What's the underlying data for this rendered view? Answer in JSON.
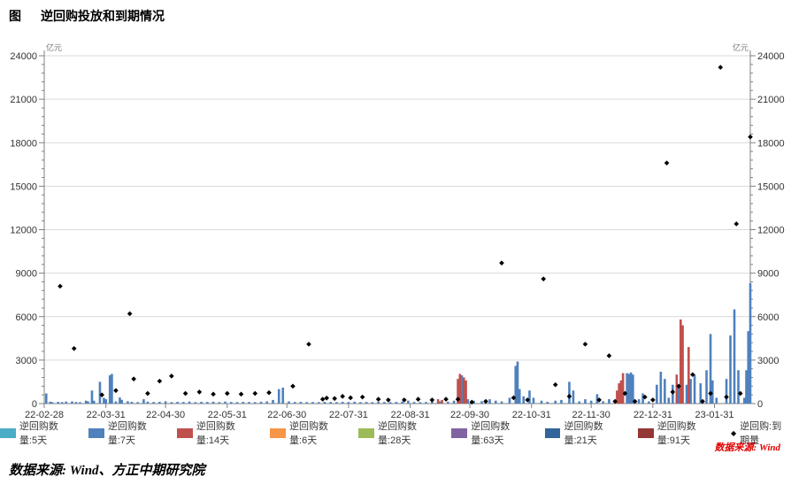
{
  "header": {
    "figure_label": "图",
    "title": "逆回购投放和到期情况"
  },
  "footer": {
    "source_main": "数据来源: Wind、方正中期研究院",
    "source_red": "数据来源: Wind"
  },
  "chart_data": {
    "type": "bar",
    "title": "逆回购投放和到期情况",
    "unit_label": "亿元",
    "grid": true,
    "legend_position": "bottom",
    "y_axis": {
      "min": 0,
      "max": 24000,
      "major_step": 3000,
      "minor_step": 600,
      "ticks": [
        0,
        3000,
        6000,
        9000,
        12000,
        15000,
        18000,
        21000,
        24000
      ]
    },
    "x_axis": {
      "total_days": 355,
      "ticks": [
        {
          "day": 0,
          "label": "22-02-28"
        },
        {
          "day": 31,
          "label": "22-03-31"
        },
        {
          "day": 61,
          "label": "22-04-30"
        },
        {
          "day": 92,
          "label": "22-05-31"
        },
        {
          "day": 122,
          "label": "22-06-30"
        },
        {
          "day": 153,
          "label": "22-07-31"
        },
        {
          "day": 184,
          "label": "22-08-31"
        },
        {
          "day": 214,
          "label": "22-09-30"
        },
        {
          "day": 245,
          "label": "22-10-31"
        },
        {
          "day": 275,
          "label": "22-11-30"
        },
        {
          "day": 306,
          "label": "22-12-31"
        },
        {
          "day": 337,
          "label": "23-01-31"
        }
      ]
    },
    "series": [
      {
        "name": "逆回购数量:5天",
        "color": "#4BACC6",
        "bars": []
      },
      {
        "name": "逆回购数量:7天",
        "color": "#4F81BD",
        "bars": [
          [
            1,
            700
          ],
          [
            3,
            130
          ],
          [
            4,
            100
          ],
          [
            7,
            120
          ],
          [
            9,
            100
          ],
          [
            11,
            140
          ],
          [
            14,
            150
          ],
          [
            16,
            110
          ],
          [
            18,
            100
          ],
          [
            21,
            200
          ],
          [
            22,
            150
          ],
          [
            24,
            900
          ],
          [
            25,
            200
          ],
          [
            28,
            1500
          ],
          [
            30,
            400
          ],
          [
            31,
            300
          ],
          [
            33,
            1950
          ],
          [
            34,
            2050
          ],
          [
            36,
            150
          ],
          [
            38,
            420
          ],
          [
            39,
            260
          ],
          [
            42,
            160
          ],
          [
            44,
            120
          ],
          [
            47,
            100
          ],
          [
            50,
            300
          ],
          [
            52,
            130
          ],
          [
            55,
            110
          ],
          [
            58,
            120
          ],
          [
            61,
            160
          ],
          [
            64,
            100
          ],
          [
            67,
            120
          ],
          [
            70,
            110
          ],
          [
            73,
            140
          ],
          [
            76,
            100
          ],
          [
            79,
            120
          ],
          [
            82,
            110
          ],
          [
            85,
            130
          ],
          [
            88,
            100
          ],
          [
            91,
            140
          ],
          [
            94,
            110
          ],
          [
            97,
            100
          ],
          [
            100,
            120
          ],
          [
            103,
            110
          ],
          [
            106,
            100
          ],
          [
            109,
            130
          ],
          [
            112,
            150
          ],
          [
            115,
            250
          ],
          [
            118,
            1000
          ],
          [
            120,
            1100
          ],
          [
            123,
            150
          ],
          [
            126,
            110
          ],
          [
            129,
            120
          ],
          [
            132,
            100
          ],
          [
            135,
            110
          ],
          [
            138,
            100
          ],
          [
            141,
            120
          ],
          [
            144,
            110
          ],
          [
            147,
            100
          ],
          [
            150,
            120
          ],
          [
            153,
            110
          ],
          [
            156,
            130
          ],
          [
            159,
            100
          ],
          [
            162,
            110
          ],
          [
            165,
            100
          ],
          [
            168,
            120
          ],
          [
            171,
            110
          ],
          [
            174,
            100
          ],
          [
            177,
            110
          ],
          [
            180,
            140
          ],
          [
            183,
            200
          ],
          [
            186,
            110
          ],
          [
            189,
            100
          ],
          [
            192,
            110
          ],
          [
            195,
            120
          ],
          [
            199,
            150
          ],
          [
            203,
            130
          ],
          [
            206,
            200
          ],
          [
            210,
            1950
          ],
          [
            213,
            300
          ],
          [
            216,
            200
          ],
          [
            220,
            160
          ],
          [
            224,
            300
          ],
          [
            227,
            200
          ],
          [
            230,
            150
          ],
          [
            234,
            400
          ],
          [
            237,
            2600
          ],
          [
            238,
            2900
          ],
          [
            239,
            1000
          ],
          [
            241,
            500
          ],
          [
            244,
            900
          ],
          [
            246,
            400
          ],
          [
            250,
            200
          ],
          [
            253,
            120
          ],
          [
            257,
            200
          ],
          [
            260,
            250
          ],
          [
            264,
            1500
          ],
          [
            266,
            900
          ],
          [
            269,
            150
          ],
          [
            272,
            300
          ],
          [
            275,
            200
          ],
          [
            278,
            650
          ],
          [
            281,
            160
          ],
          [
            284,
            300
          ],
          [
            293,
            2100
          ],
          [
            294,
            2050
          ],
          [
            295,
            2150
          ],
          [
            296,
            2000
          ],
          [
            299,
            300
          ],
          [
            301,
            700
          ],
          [
            304,
            150
          ],
          [
            308,
            1300
          ],
          [
            310,
            2200
          ],
          [
            312,
            1700
          ],
          [
            314,
            400
          ],
          [
            316,
            1300
          ],
          [
            319,
            1200
          ],
          [
            323,
            1300
          ],
          [
            325,
            1700
          ],
          [
            327,
            2000
          ],
          [
            330,
            1400
          ],
          [
            333,
            2300
          ],
          [
            335,
            4800
          ],
          [
            336,
            1600
          ],
          [
            338,
            400
          ],
          [
            343,
            1700
          ],
          [
            345,
            4700
          ],
          [
            347,
            6500
          ],
          [
            349,
            2300
          ],
          [
            352,
            400
          ],
          [
            353,
            2300
          ],
          [
            354,
            5000
          ],
          [
            355,
            8300
          ]
        ]
      },
      {
        "name": "逆回购数量:14天",
        "color": "#C0504D",
        "bars": [
          [
            198,
            300
          ],
          [
            200,
            250
          ],
          [
            208,
            1700
          ],
          [
            209,
            2050
          ],
          [
            211,
            1800
          ],
          [
            212,
            1600
          ],
          [
            288,
            900
          ],
          [
            289,
            1400
          ],
          [
            290,
            1600
          ],
          [
            291,
            2100
          ],
          [
            318,
            2000
          ],
          [
            320,
            5800
          ],
          [
            321,
            5400
          ],
          [
            324,
            3900
          ]
        ]
      },
      {
        "name": "逆回购数量:6天",
        "color": "#F79646",
        "bars": []
      },
      {
        "name": "逆回购数量:28天",
        "color": "#9BBB59",
        "bars": []
      },
      {
        "name": "逆回购数量:63天",
        "color": "#8064A2",
        "bars": []
      },
      {
        "name": "逆回购数量:21天",
        "color": "#31659B",
        "bars": []
      },
      {
        "name": "逆回购数量:91天",
        "color": "#953734",
        "bars": []
      }
    ],
    "maturity_scatter": {
      "name": "逆回购:到期量",
      "color": "#000000",
      "marker": "diamond",
      "points": [
        [
          8,
          8100
        ],
        [
          15,
          3800
        ],
        [
          29,
          600
        ],
        [
          36,
          900
        ],
        [
          43,
          6200
        ],
        [
          45,
          1700
        ],
        [
          52,
          700
        ],
        [
          58,
          1550
        ],
        [
          64,
          1900
        ],
        [
          71,
          700
        ],
        [
          78,
          800
        ],
        [
          85,
          650
        ],
        [
          92,
          700
        ],
        [
          99,
          650
        ],
        [
          106,
          700
        ],
        [
          113,
          750
        ],
        [
          125,
          1200
        ],
        [
          133,
          4100
        ],
        [
          140,
          300
        ],
        [
          142,
          380
        ],
        [
          146,
          350
        ],
        [
          150,
          500
        ],
        [
          154,
          400
        ],
        [
          160,
          450
        ],
        [
          168,
          300
        ],
        [
          173,
          250
        ],
        [
          181,
          250
        ],
        [
          188,
          300
        ],
        [
          195,
          250
        ],
        [
          202,
          300
        ],
        [
          208,
          300
        ],
        [
          215,
          100
        ],
        [
          222,
          150
        ],
        [
          230,
          9700
        ],
        [
          236,
          400
        ],
        [
          243,
          250
        ],
        [
          251,
          8600
        ],
        [
          257,
          1300
        ],
        [
          264,
          500
        ],
        [
          272,
          4100
        ],
        [
          279,
          250
        ],
        [
          284,
          3300
        ],
        [
          287,
          150
        ],
        [
          292,
          700
        ],
        [
          297,
          150
        ],
        [
          302,
          450
        ],
        [
          306,
          250
        ],
        [
          313,
          16600
        ],
        [
          316,
          800
        ],
        [
          319,
          1200
        ],
        [
          326,
          2000
        ],
        [
          331,
          150
        ],
        [
          335,
          700
        ],
        [
          340,
          23200
        ],
        [
          343,
          450
        ],
        [
          348,
          12400
        ],
        [
          350,
          700
        ],
        [
          355,
          18400
        ]
      ]
    },
    "legend": [
      {
        "label": "逆回购数量:5天",
        "color": "#4BACC6",
        "type": "box"
      },
      {
        "label": "逆回购数量:7天",
        "color": "#4F81BD",
        "type": "box"
      },
      {
        "label": "逆回购数量:14天",
        "color": "#C0504D",
        "type": "box"
      },
      {
        "label": "逆回购数量:6天",
        "color": "#F79646",
        "type": "box"
      },
      {
        "label": "逆回购数量:28天",
        "color": "#9BBB59",
        "type": "box"
      },
      {
        "label": "逆回购数量:63天",
        "color": "#8064A2",
        "type": "box"
      },
      {
        "label": "逆回购数量:21天",
        "color": "#31659B",
        "type": "box"
      },
      {
        "label": "逆回购数量:91天",
        "color": "#953734",
        "type": "box"
      },
      {
        "label": "逆回购:到期量",
        "color": "#000000",
        "type": "diamond"
      }
    ],
    "colors": {
      "gridline": "#d9d9d9",
      "axis": "#808080",
      "tick_label": "#333333",
      "unit_label": "#777777"
    }
  }
}
